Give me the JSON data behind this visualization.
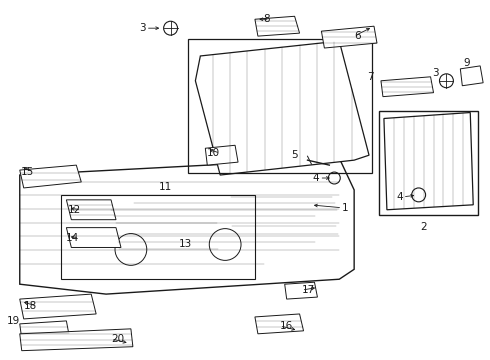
{
  "bg_color": "#ffffff",
  "line_color": "#1a1a1a",
  "fig_w": 4.9,
  "fig_h": 3.6,
  "dpi": 100
}
